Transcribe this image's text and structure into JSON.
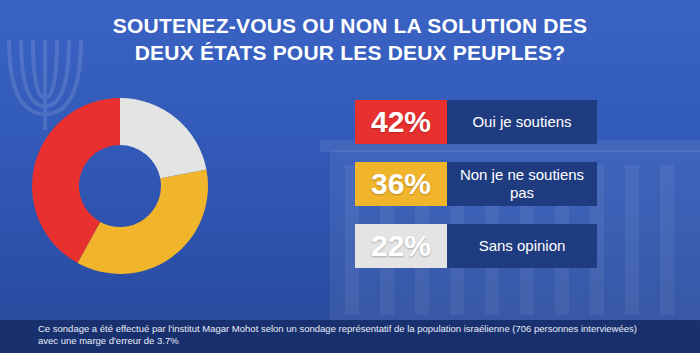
{
  "chart_data": {
    "type": "pie",
    "title": "SOUTENEZ-VOUS OU NON LA SOLUTION DES DEUX ÉTATS POUR LES DEUX PEUPLES?",
    "categories": [
      "Oui je soutiens",
      "Non je ne soutiens pas",
      "Sans opinion"
    ],
    "values": [
      42,
      36,
      22
    ],
    "value_labels": [
      "42%",
      "36%",
      "22%"
    ],
    "colors": [
      "#e8302e",
      "#f1b52c",
      "#e4e4e4"
    ],
    "annotations": [
      "Ce sondage a été effectué par l'institut Magar Mohot selon un sondage représentatif de la population israélienne (706 personnes interviewées) avec une marge d'erreur de 3.7%"
    ]
  }
}
